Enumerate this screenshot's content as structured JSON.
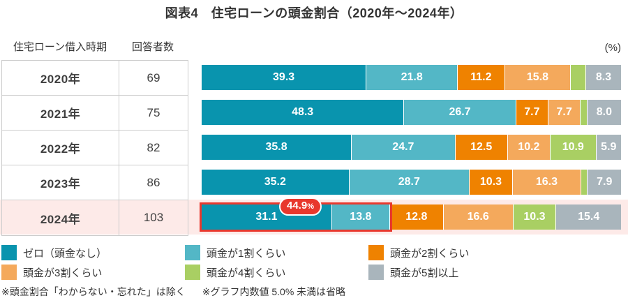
{
  "title": "図表4　住宅ローンの頭金割合（2020年～2024年）",
  "table_headers": {
    "period": "住宅ローン借入時期",
    "respondents": "回答者数"
  },
  "unit_label": "(%)",
  "chart_data": {
    "type": "bar",
    "variant": "horizontal-stacked-100pct",
    "title": "住宅ローンの頭金割合（2020年～2024年）",
    "categories": [
      "2020年",
      "2021年",
      "2022年",
      "2023年",
      "2024年"
    ],
    "respondents": [
      69,
      75,
      82,
      86,
      103
    ],
    "series": [
      {
        "name": "ゼロ（頭金なし）",
        "color": "#0994ae",
        "values": [
          39.3,
          48.3,
          35.8,
          35.2,
          31.1
        ]
      },
      {
        "name": "頭金が1割くらい",
        "color": "#53b7c6",
        "values": [
          21.8,
          26.7,
          24.7,
          28.7,
          13.8
        ]
      },
      {
        "name": "頭金が2割くらい",
        "color": "#ef8200",
        "values": [
          11.2,
          7.7,
          12.5,
          10.3,
          12.8
        ]
      },
      {
        "name": "頭金が3割くらい",
        "color": "#f4a95c",
        "values": [
          15.8,
          7.7,
          10.2,
          16.3,
          16.6
        ]
      },
      {
        "name": "頭金が4割くらい",
        "color": "#a9cf63",
        "values": [
          3.6,
          1.6,
          10.9,
          1.6,
          10.3
        ]
      },
      {
        "name": "頭金が5割以上",
        "color": "#a9b5bc",
        "values": [
          8.3,
          8.0,
          5.9,
          7.9,
          15.4
        ]
      }
    ],
    "label_threshold": 5.0,
    "xlim": [
      0,
      100
    ],
    "legend_position": "bottom",
    "highlight": {
      "row_index": 4,
      "category": "2024年",
      "combined_pct": 44.9,
      "badge_value": "44.9",
      "badge_suffix": "%",
      "accent_color": "#e8382d",
      "row_background": "#fdeae8"
    }
  },
  "legend": [
    {
      "label": "ゼロ（頭金なし）",
      "color": "#0994ae"
    },
    {
      "label": "頭金が1割くらい",
      "color": "#53b7c6"
    },
    {
      "label": "頭金が2割くらい",
      "color": "#ef8200"
    },
    {
      "label": "頭金が3割くらい",
      "color": "#f4a95c"
    },
    {
      "label": "頭金が4割くらい",
      "color": "#a9cf63"
    },
    {
      "label": "頭金が5割以上",
      "color": "#a9b5bc"
    }
  ],
  "footnotes": [
    "※頭金割合「わからない・忘れた」は除く",
    "※グラフ内数値 5.0% 未満は省略"
  ]
}
